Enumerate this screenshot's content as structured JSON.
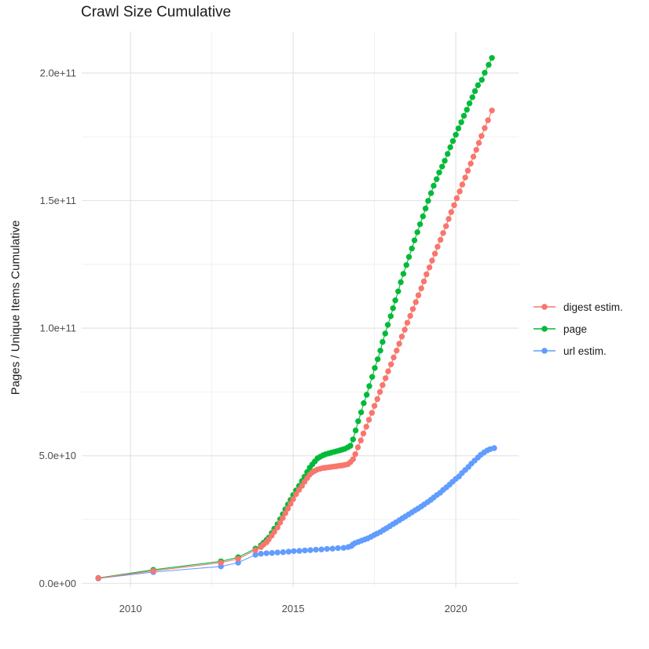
{
  "page_title": "Crawl Size Cumulative",
  "chart_data": {
    "type": "line",
    "title": "Crawl Size Cumulative",
    "xlabel": "",
    "ylabel": "Pages / Unique Items Cumulative",
    "value_unit": "1e9",
    "xlim": [
      2008.5,
      2021.93
    ],
    "ylim": [
      0,
      216.3
    ],
    "grid": true,
    "legend_position": "right",
    "x_ticks": [
      {
        "value": 2010,
        "label": "2010"
      },
      {
        "value": 2015,
        "label": "2015"
      },
      {
        "value": 2020,
        "label": "2020"
      }
    ],
    "x_minor": [
      2012.5,
      2017.5
    ],
    "y_ticks": [
      {
        "value": 0,
        "label": "0.0e+00"
      },
      {
        "value": 50,
        "label": "5.0e+10"
      },
      {
        "value": 100,
        "label": "1.0e+11"
      },
      {
        "value": 150,
        "label": "1.5e+11"
      },
      {
        "value": 200,
        "label": "2.0e+11"
      }
    ],
    "y_minor": [
      25,
      75,
      125,
      175
    ],
    "colors": {
      "major_grid": "#e4e4e4",
      "minor_grid": "#f1f1f1",
      "tick_text": "#4d4d4d",
      "title_text": "#1b1b1b"
    },
    "series": [
      {
        "name": "digest estim.",
        "color": "#F8766D",
        "points": [
          [
            2009.01,
            2.0
          ],
          [
            2010.7,
            4.9
          ],
          [
            2012.78,
            8.1
          ],
          [
            2013.31,
            9.6
          ],
          [
            2013.84,
            13.0
          ],
          [
            2014.01,
            14.2
          ],
          [
            2014.09,
            15.2
          ],
          [
            2014.18,
            16.1
          ],
          [
            2014.25,
            17.2
          ],
          [
            2014.34,
            18.7
          ],
          [
            2014.42,
            20.2
          ],
          [
            2014.52,
            21.9
          ],
          [
            2014.6,
            23.8
          ],
          [
            2014.68,
            25.6
          ],
          [
            2014.76,
            27.5
          ],
          [
            2014.84,
            29.3
          ],
          [
            2014.92,
            31.2
          ],
          [
            2015.0,
            33.0
          ],
          [
            2015.09,
            34.9
          ],
          [
            2015.18,
            36.6
          ],
          [
            2015.27,
            38.2
          ],
          [
            2015.35,
            39.8
          ],
          [
            2015.43,
            41.2
          ],
          [
            2015.51,
            42.6
          ],
          [
            2015.59,
            43.5
          ],
          [
            2015.67,
            44.1
          ],
          [
            2015.75,
            44.6
          ],
          [
            2015.83,
            44.9
          ],
          [
            2015.92,
            45.2
          ],
          [
            2016.0,
            45.3
          ],
          [
            2016.09,
            45.5
          ],
          [
            2016.17,
            45.6
          ],
          [
            2016.26,
            45.8
          ],
          [
            2016.34,
            45.9
          ],
          [
            2016.43,
            46.1
          ],
          [
            2016.51,
            46.2
          ],
          [
            2016.59,
            46.4
          ],
          [
            2016.68,
            46.7
          ],
          [
            2016.76,
            47.5
          ],
          [
            2016.84,
            48.6
          ],
          [
            2016.91,
            50.6
          ],
          [
            2016.99,
            53.3
          ],
          [
            2017.08,
            56.0
          ],
          [
            2017.16,
            58.7
          ],
          [
            2017.25,
            61.4
          ],
          [
            2017.33,
            64.1
          ],
          [
            2017.42,
            66.8
          ],
          [
            2017.5,
            69.5
          ],
          [
            2017.59,
            72.2
          ],
          [
            2017.67,
            75.0
          ],
          [
            2017.75,
            77.7
          ],
          [
            2017.84,
            80.4
          ],
          [
            2017.92,
            83.1
          ],
          [
            2018.01,
            85.8
          ],
          [
            2018.09,
            88.5
          ],
          [
            2018.18,
            91.2
          ],
          [
            2018.26,
            93.9
          ],
          [
            2018.34,
            96.7
          ],
          [
            2018.43,
            99.4
          ],
          [
            2018.51,
            102.1
          ],
          [
            2018.6,
            104.8
          ],
          [
            2018.68,
            107.5
          ],
          [
            2018.77,
            110.2
          ],
          [
            2018.85,
            112.9
          ],
          [
            2018.94,
            115.6
          ],
          [
            2019.02,
            118.3
          ],
          [
            2019.1,
            121.1
          ],
          [
            2019.19,
            123.8
          ],
          [
            2019.27,
            126.5
          ],
          [
            2019.36,
            129.2
          ],
          [
            2019.44,
            131.9
          ],
          [
            2019.53,
            134.6
          ],
          [
            2019.61,
            137.3
          ],
          [
            2019.7,
            140.0
          ],
          [
            2019.78,
            142.8
          ],
          [
            2019.86,
            145.5
          ],
          [
            2019.95,
            148.2
          ],
          [
            2020.03,
            150.9
          ],
          [
            2020.12,
            153.6
          ],
          [
            2020.2,
            156.3
          ],
          [
            2020.29,
            159.0
          ],
          [
            2020.37,
            161.7
          ],
          [
            2020.46,
            164.5
          ],
          [
            2020.54,
            167.2
          ],
          [
            2020.63,
            169.9
          ],
          [
            2020.71,
            172.6
          ],
          [
            2020.79,
            175.3
          ],
          [
            2020.89,
            178.4
          ],
          [
            2020.99,
            181.5
          ],
          [
            2021.11,
            185.3
          ]
        ]
      },
      {
        "name": "page",
        "color": "#00BA38",
        "points": [
          [
            2009.01,
            2.1
          ],
          [
            2010.7,
            5.3
          ],
          [
            2012.78,
            8.6
          ],
          [
            2013.31,
            10.2
          ],
          [
            2013.84,
            13.6
          ],
          [
            2014.01,
            14.9
          ],
          [
            2014.09,
            15.9
          ],
          [
            2014.18,
            17.0
          ],
          [
            2014.25,
            17.9
          ],
          [
            2014.34,
            19.7
          ],
          [
            2014.42,
            21.4
          ],
          [
            2014.52,
            23.2
          ],
          [
            2014.6,
            25.1
          ],
          [
            2014.68,
            27.1
          ],
          [
            2014.76,
            29.0
          ],
          [
            2014.84,
            30.9
          ],
          [
            2014.92,
            32.7
          ],
          [
            2015.0,
            34.6
          ],
          [
            2015.09,
            36.4
          ],
          [
            2015.18,
            38.2
          ],
          [
            2015.27,
            40.1
          ],
          [
            2015.35,
            41.8
          ],
          [
            2015.43,
            43.6
          ],
          [
            2015.51,
            45.3
          ],
          [
            2015.59,
            46.6
          ],
          [
            2015.67,
            47.8
          ],
          [
            2015.75,
            49.0
          ],
          [
            2015.83,
            49.6
          ],
          [
            2015.92,
            50.2
          ],
          [
            2016.0,
            50.6
          ],
          [
            2016.09,
            50.9
          ],
          [
            2016.17,
            51.2
          ],
          [
            2016.26,
            51.5
          ],
          [
            2016.34,
            51.8
          ],
          [
            2016.43,
            52.1
          ],
          [
            2016.51,
            52.4
          ],
          [
            2016.59,
            52.7
          ],
          [
            2016.68,
            53.3
          ],
          [
            2016.76,
            53.9
          ],
          [
            2016.84,
            56.4
          ],
          [
            2016.92,
            59.9
          ],
          [
            2017.0,
            63.5
          ],
          [
            2017.09,
            67.0
          ],
          [
            2017.17,
            70.6
          ],
          [
            2017.26,
            73.9
          ],
          [
            2017.34,
            77.3
          ],
          [
            2017.43,
            80.9
          ],
          [
            2017.51,
            84.4
          ],
          [
            2017.6,
            87.8
          ],
          [
            2017.68,
            91.2
          ],
          [
            2017.75,
            94.6
          ],
          [
            2017.83,
            97.9
          ],
          [
            2017.91,
            101.3
          ],
          [
            2018.0,
            104.7
          ],
          [
            2018.07,
            107.8
          ],
          [
            2018.14,
            110.9
          ],
          [
            2018.23,
            114.4
          ],
          [
            2018.31,
            118.0
          ],
          [
            2018.39,
            121.3
          ],
          [
            2018.48,
            124.7
          ],
          [
            2018.56,
            127.9
          ],
          [
            2018.65,
            131.2
          ],
          [
            2018.73,
            134.4
          ],
          [
            2018.82,
            137.6
          ],
          [
            2018.9,
            140.7
          ],
          [
            2018.99,
            143.8
          ],
          [
            2019.07,
            146.9
          ],
          [
            2019.15,
            149.9
          ],
          [
            2019.24,
            152.9
          ],
          [
            2019.32,
            155.8
          ],
          [
            2019.41,
            158.4
          ],
          [
            2019.49,
            161.0
          ],
          [
            2019.58,
            163.3
          ],
          [
            2019.66,
            165.6
          ],
          [
            2019.75,
            168.3
          ],
          [
            2019.83,
            170.9
          ],
          [
            2019.91,
            173.3
          ],
          [
            2020.0,
            175.8
          ],
          [
            2020.08,
            178.3
          ],
          [
            2020.17,
            180.7
          ],
          [
            2020.25,
            183.2
          ],
          [
            2020.34,
            185.6
          ],
          [
            2020.42,
            188.1
          ],
          [
            2020.51,
            190.5
          ],
          [
            2020.59,
            192.9
          ],
          [
            2020.68,
            195.2
          ],
          [
            2020.8,
            197.3
          ],
          [
            2020.89,
            200.1
          ],
          [
            2021.01,
            203.2
          ],
          [
            2021.11,
            205.9
          ]
        ]
      },
      {
        "name": "url estim.",
        "color": "#619CFF",
        "points": [
          [
            2009.01,
            1.9
          ],
          [
            2010.7,
            4.4
          ],
          [
            2012.78,
            6.6
          ],
          [
            2013.31,
            8.1
          ],
          [
            2013.84,
            11.2
          ],
          [
            2014.01,
            11.6
          ],
          [
            2014.18,
            11.8
          ],
          [
            2014.35,
            11.9
          ],
          [
            2014.52,
            12.1
          ],
          [
            2014.69,
            12.2
          ],
          [
            2014.86,
            12.4
          ],
          [
            2015.02,
            12.6
          ],
          [
            2015.19,
            12.7
          ],
          [
            2015.36,
            12.9
          ],
          [
            2015.53,
            13.0
          ],
          [
            2015.7,
            13.2
          ],
          [
            2015.87,
            13.3
          ],
          [
            2016.04,
            13.5
          ],
          [
            2016.21,
            13.6
          ],
          [
            2016.38,
            13.8
          ],
          [
            2016.55,
            13.9
          ],
          [
            2016.69,
            14.2
          ],
          [
            2016.79,
            14.6
          ],
          [
            2016.84,
            15.3
          ],
          [
            2016.91,
            15.8
          ],
          [
            2017.0,
            16.2
          ],
          [
            2017.1,
            16.7
          ],
          [
            2017.2,
            17.2
          ],
          [
            2017.29,
            17.6
          ],
          [
            2017.39,
            18.2
          ],
          [
            2017.49,
            18.9
          ],
          [
            2017.58,
            19.5
          ],
          [
            2017.68,
            20.1
          ],
          [
            2017.78,
            20.9
          ],
          [
            2017.87,
            21.6
          ],
          [
            2017.97,
            22.4
          ],
          [
            2018.07,
            23.2
          ],
          [
            2018.16,
            23.9
          ],
          [
            2018.26,
            24.7
          ],
          [
            2018.36,
            25.5
          ],
          [
            2018.45,
            26.2
          ],
          [
            2018.55,
            27.0
          ],
          [
            2018.65,
            27.8
          ],
          [
            2018.75,
            28.6
          ],
          [
            2018.84,
            29.3
          ],
          [
            2018.94,
            30.1
          ],
          [
            2019.03,
            30.9
          ],
          [
            2019.13,
            31.8
          ],
          [
            2019.23,
            32.7
          ],
          [
            2019.32,
            33.6
          ],
          [
            2019.42,
            34.6
          ],
          [
            2019.52,
            35.5
          ],
          [
            2019.61,
            36.6
          ],
          [
            2019.71,
            37.6
          ],
          [
            2019.81,
            38.7
          ],
          [
            2019.9,
            39.8
          ],
          [
            2020.0,
            40.9
          ],
          [
            2020.1,
            41.9
          ],
          [
            2020.19,
            43.2
          ],
          [
            2020.29,
            44.4
          ],
          [
            2020.39,
            45.6
          ],
          [
            2020.48,
            46.9
          ],
          [
            2020.58,
            48.1
          ],
          [
            2020.68,
            49.3
          ],
          [
            2020.77,
            50.4
          ],
          [
            2020.87,
            51.3
          ],
          [
            2020.97,
            52.1
          ],
          [
            2021.06,
            52.6
          ],
          [
            2021.18,
            53.0
          ]
        ]
      }
    ]
  }
}
